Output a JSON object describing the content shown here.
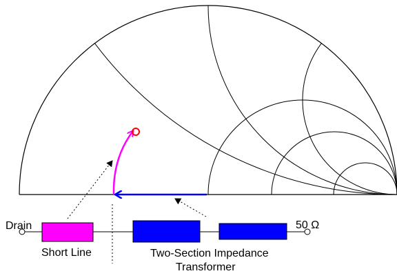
{
  "labels": {
    "drain": "Drain",
    "load": "50 Ω",
    "short_line": "Short Line",
    "transformer_line1": "Two-Section Impedance",
    "transformer_line2": "Transformer"
  },
  "colors": {
    "grid": "#000000",
    "short_line": "#ff00ff",
    "transformer": "#0000ff",
    "start_marker": "#ff0000",
    "background": "#ffffff"
  }
}
